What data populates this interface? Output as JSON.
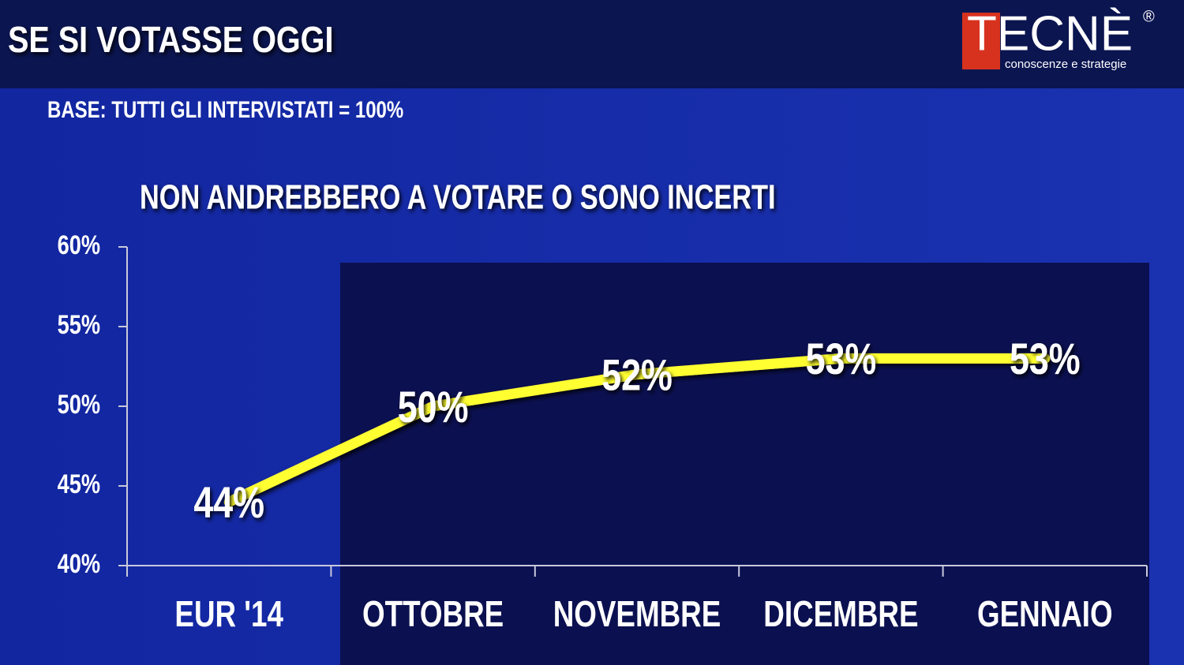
{
  "chart_data": {
    "type": "line",
    "title": "SE SI VOTASSE OGGI",
    "subtitle": "BASE: TUTTI GLI INTERVISTATI = 100%",
    "categories": [
      "EUR '14",
      "OTTOBRE",
      "NOVEMBRE",
      "DICEMBRE",
      "GENNAIO"
    ],
    "series": [
      {
        "name": "NON ANDREBBERO A VOTARE O SONO INCERTI",
        "color": "#ffff33",
        "values": [
          44,
          50,
          52,
          53,
          53
        ],
        "value_labels": [
          "44%",
          "50%",
          "52%",
          "53%",
          "53%"
        ]
      }
    ],
    "ylim": [
      40,
      60
    ],
    "yticks": [
      {
        "value": 40,
        "label": "40%"
      },
      {
        "value": 45,
        "label": "45%"
      },
      {
        "value": 50,
        "label": "50%"
      },
      {
        "value": 55,
        "label": "55%"
      },
      {
        "value": 60,
        "label": "60%"
      }
    ],
    "grid": false
  },
  "logo": {
    "name": "TECNÈ",
    "mark": "®",
    "tagline": "conoscenze e strategie"
  }
}
